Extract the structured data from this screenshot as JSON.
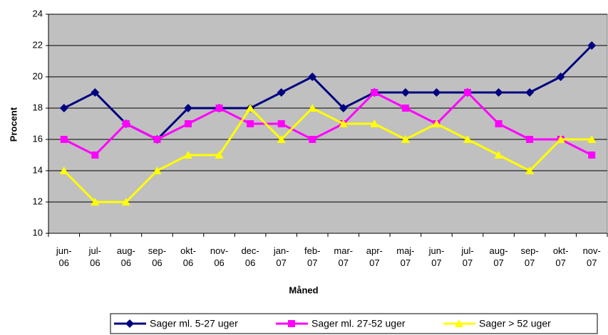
{
  "chart_data": {
    "type": "line",
    "x_label": "Måned",
    "y_label": "Procent",
    "categories": [
      "jun-06",
      "jul-06",
      "aug-06",
      "sep-06",
      "okt-06",
      "nov-06",
      "dec-06",
      "jan-07",
      "feb-07",
      "mar-07",
      "apr-07",
      "maj-07",
      "jun-07",
      "jul-07",
      "aug-07",
      "sep-07",
      "okt-07",
      "nov-07"
    ],
    "series": [
      {
        "name": "Sager ml. 5-27 uger",
        "color": "#000080",
        "marker": "diamond",
        "values": [
          18,
          19,
          17,
          16,
          18,
          18,
          18,
          19,
          20,
          18,
          19,
          19,
          19,
          19,
          19,
          19,
          20,
          22
        ]
      },
      {
        "name": "Sager ml. 27-52 uger",
        "color": "#ff00ff",
        "marker": "square",
        "values": [
          16,
          15,
          17,
          16,
          17,
          18,
          17,
          17,
          16,
          17,
          19,
          18,
          17,
          19,
          17,
          16,
          16,
          15
        ]
      },
      {
        "name": "Sager > 52 uger",
        "color": "#ffff00",
        "marker": "triangle",
        "values": [
          14,
          12,
          12,
          14,
          15,
          15,
          18,
          16,
          18,
          17,
          17,
          16,
          17,
          16,
          15,
          14,
          16,
          16
        ]
      }
    ],
    "ylim": [
      10,
      24
    ],
    "yticks": [
      10,
      12,
      14,
      16,
      18,
      20,
      22,
      24
    ],
    "grid": true,
    "legend": "bottom"
  }
}
